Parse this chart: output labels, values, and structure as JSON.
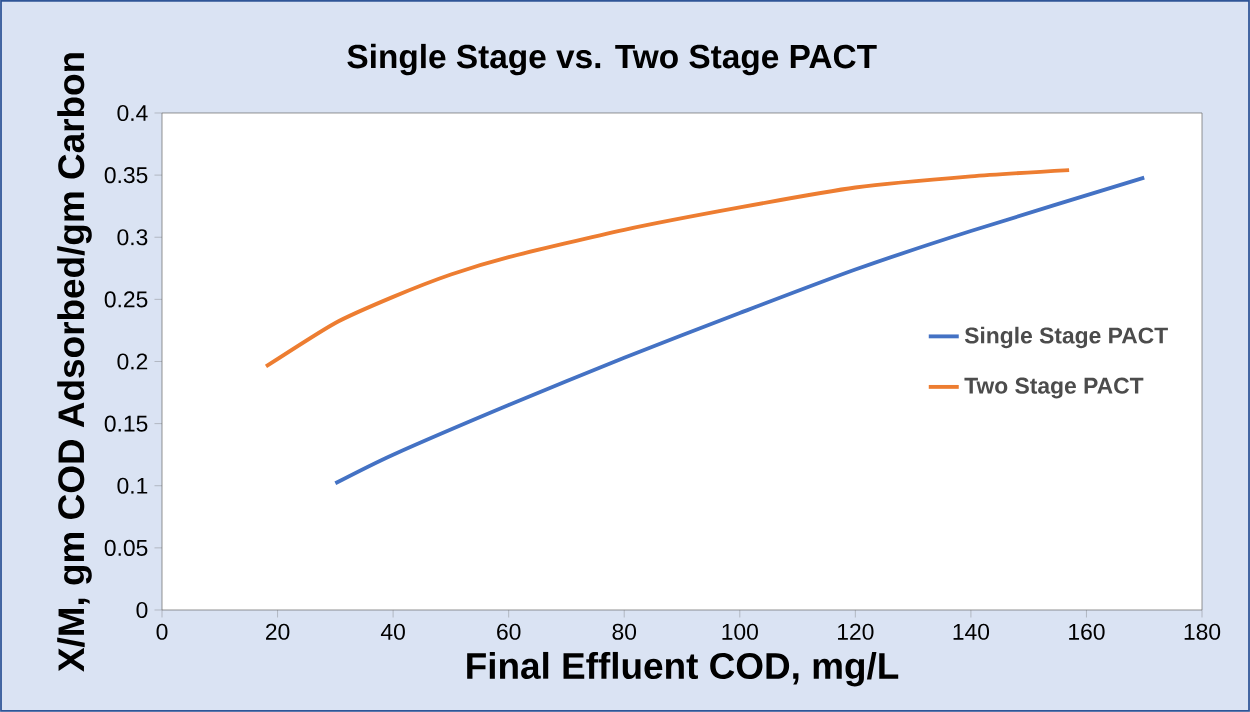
{
  "chart_data": {
    "type": "line",
    "title": "Single Stage vs. Two Stage PACT",
    "xlabel": "Final Effluent COD, mg/L",
    "ylabel": "X/M, gm COD Adsorbed/gm Carbon",
    "xlim": [
      0,
      180
    ],
    "xticks": [
      0,
      20,
      40,
      60,
      80,
      100,
      120,
      140,
      160,
      180
    ],
    "ylim": [
      0,
      0.4
    ],
    "yticks": [
      0,
      0.05,
      0.1,
      0.15,
      0.2,
      0.25,
      0.3,
      0.35,
      0.4
    ],
    "grid": false,
    "legend": "right",
    "marker": "none",
    "line_style": "solid",
    "series": [
      {
        "name": "Single Stage PACT",
        "color": "#4472c4",
        "x": [
          30,
          40,
          60,
          80,
          100,
          120,
          140,
          170
        ],
        "values": [
          0.102,
          0.125,
          0.165,
          0.203,
          0.239,
          0.274,
          0.305,
          0.348
        ]
      },
      {
        "name": "Two Stage PACT",
        "color": "#ed7d31",
        "x": [
          18,
          30,
          40,
          50,
          60,
          80,
          100,
          120,
          140,
          157
        ],
        "values": [
          0.196,
          0.231,
          0.252,
          0.27,
          0.284,
          0.306,
          0.324,
          0.34,
          0.349,
          0.354
        ]
      }
    ]
  }
}
